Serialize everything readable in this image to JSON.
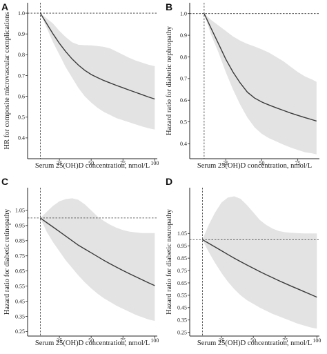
{
  "chart_data": [
    {
      "panel": "A",
      "type": "line",
      "xlabel": "Serum 25(OH)D concentration, nmol/L",
      "ylabel": "HR for composite microvascular complications",
      "xlim": [
        0,
        102
      ],
      "ylim": [
        0.3,
        1.05
      ],
      "xticks": [
        25,
        50,
        75,
        100
      ],
      "yticks": [
        0.4,
        0.5,
        0.6,
        0.7,
        0.8,
        0.9,
        1.0
      ],
      "ytick_labels": [
        "0.4",
        "0.5",
        "0.6",
        "0.7",
        "0.8",
        "0.9",
        "1.0"
      ],
      "reference": {
        "x": 10,
        "y": 1.0
      },
      "x": [
        10,
        15,
        20,
        25,
        30,
        35,
        40,
        45,
        50,
        55,
        60,
        65,
        70,
        75,
        80,
        85,
        90,
        95,
        100
      ],
      "y": [
        1.0,
        0.95,
        0.9,
        0.855,
        0.815,
        0.78,
        0.75,
        0.725,
        0.705,
        0.69,
        0.676,
        0.664,
        0.652,
        0.641,
        0.63,
        0.619,
        0.608,
        0.597,
        0.587
      ],
      "lower": [
        1.0,
        0.93,
        0.86,
        0.8,
        0.74,
        0.69,
        0.64,
        0.6,
        0.57,
        0.545,
        0.525,
        0.51,
        0.495,
        0.485,
        0.475,
        0.465,
        0.455,
        0.447,
        0.44
      ],
      "upper": [
        1.0,
        0.975,
        0.95,
        0.915,
        0.885,
        0.86,
        0.848,
        0.846,
        0.845,
        0.842,
        0.838,
        0.83,
        0.815,
        0.8,
        0.785,
        0.772,
        0.762,
        0.752,
        0.745
      ]
    },
    {
      "panel": "B",
      "type": "line",
      "xlabel": "Serum 25(OH)D concentration, nmol/L",
      "ylabel": "Hazard ratio for diabetic nephropathy",
      "xlim": [
        0,
        90
      ],
      "ylim": [
        0.33,
        1.05
      ],
      "xticks": [
        25,
        50,
        75
      ],
      "yticks": [
        0.4,
        0.5,
        0.6,
        0.7,
        0.8,
        0.9,
        1.0
      ],
      "ytick_labels": [
        "0.4",
        "0.5",
        "0.6",
        "0.7",
        "0.8",
        "0.9",
        "1.0"
      ],
      "reference": {
        "x": 10,
        "y": 1.0
      },
      "x": [
        10,
        15,
        20,
        25,
        30,
        35,
        40,
        45,
        50,
        55,
        60,
        65,
        70,
        75,
        80,
        85,
        88
      ],
      "y": [
        1.0,
        0.93,
        0.86,
        0.79,
        0.73,
        0.68,
        0.637,
        0.61,
        0.592,
        0.578,
        0.565,
        0.553,
        0.541,
        0.53,
        0.52,
        0.51,
        0.504
      ],
      "lower": [
        1.0,
        0.9,
        0.82,
        0.73,
        0.65,
        0.58,
        0.52,
        0.475,
        0.445,
        0.425,
        0.41,
        0.395,
        0.382,
        0.37,
        0.36,
        0.355,
        0.35
      ],
      "upper": [
        1.0,
        0.97,
        0.945,
        0.92,
        0.895,
        0.875,
        0.86,
        0.848,
        0.835,
        0.82,
        0.8,
        0.78,
        0.755,
        0.73,
        0.71,
        0.695,
        0.685
      ]
    },
    {
      "panel": "C",
      "type": "line",
      "xlabel": "Serum 25(OH)D concentration, nmol/L",
      "ylabel": "Hazard ratio for diabetic retinopathy",
      "xlim": [
        0,
        102
      ],
      "ylim": [
        0.22,
        1.2
      ],
      "xticks": [
        25,
        50,
        75,
        100
      ],
      "yticks": [
        0.25,
        0.35,
        0.45,
        0.55,
        0.65,
        0.75,
        0.85,
        0.95,
        1.05
      ],
      "ytick_labels": [
        "0.25",
        "0.35",
        "0.45",
        "0.55",
        "0.65",
        "0.75",
        "0.85",
        "0.95",
        "1.05"
      ],
      "reference": {
        "x": 10,
        "y": 1.0
      },
      "x": [
        10,
        15,
        20,
        25,
        30,
        35,
        40,
        45,
        50,
        55,
        60,
        65,
        70,
        75,
        80,
        85,
        90,
        95,
        100
      ],
      "y": [
        1.0,
        0.97,
        0.94,
        0.91,
        0.88,
        0.85,
        0.82,
        0.795,
        0.77,
        0.745,
        0.72,
        0.697,
        0.675,
        0.653,
        0.632,
        0.612,
        0.592,
        0.572,
        0.553
      ],
      "lower": [
        1.0,
        0.91,
        0.84,
        0.78,
        0.72,
        0.67,
        0.62,
        0.575,
        0.535,
        0.5,
        0.47,
        0.445,
        0.42,
        0.4,
        0.38,
        0.36,
        0.345,
        0.33,
        0.32
      ],
      "upper": [
        1.0,
        1.04,
        1.08,
        1.11,
        1.125,
        1.13,
        1.12,
        1.09,
        1.05,
        1.01,
        0.98,
        0.955,
        0.935,
        0.92,
        0.91,
        0.905,
        0.9,
        0.9,
        0.9
      ]
    },
    {
      "panel": "D",
      "type": "line",
      "xlabel": "Serum 25(OH)D concentration, nmol/L",
      "ylabel": "Hazard ratio for diabetic neuropathy",
      "xlim": [
        0,
        102
      ],
      "ylim": [
        0.22,
        1.42
      ],
      "xticks": [
        25,
        50,
        75,
        100
      ],
      "yticks": [
        0.25,
        0.35,
        0.45,
        0.55,
        0.65,
        0.75,
        0.85,
        0.95,
        1.05
      ],
      "ytick_labels": [
        "0.25",
        "0.35",
        "0.45",
        "0.55",
        "0.65",
        "0.75",
        "0.85",
        "0.95",
        "1.05"
      ],
      "reference": {
        "x": 10,
        "y": 1.0
      },
      "x": [
        10,
        15,
        20,
        25,
        30,
        35,
        40,
        45,
        50,
        55,
        60,
        65,
        70,
        75,
        80,
        85,
        90,
        95,
        100
      ],
      "y": [
        1.0,
        0.97,
        0.94,
        0.91,
        0.88,
        0.85,
        0.822,
        0.795,
        0.768,
        0.742,
        0.717,
        0.693,
        0.669,
        0.646,
        0.623,
        0.601,
        0.579,
        0.557,
        0.535
      ],
      "lower": [
        1.0,
        0.9,
        0.81,
        0.73,
        0.66,
        0.6,
        0.55,
        0.51,
        0.48,
        0.45,
        0.425,
        0.4,
        0.38,
        0.36,
        0.34,
        0.32,
        0.305,
        0.29,
        0.28
      ],
      "upper": [
        1.0,
        1.12,
        1.22,
        1.3,
        1.34,
        1.35,
        1.33,
        1.28,
        1.22,
        1.16,
        1.12,
        1.09,
        1.07,
        1.06,
        1.055,
        1.052,
        1.05,
        1.05,
        1.05
      ]
    }
  ]
}
